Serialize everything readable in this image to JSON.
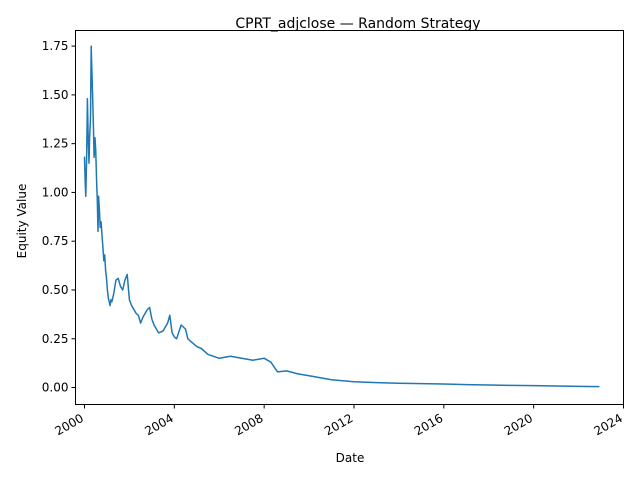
{
  "chart_data": {
    "type": "line",
    "title": "CPRT_adjclose — Random Strategy",
    "xlabel": "Date",
    "ylabel": "Equity Value",
    "xlim": [
      1999.6,
      2024.0
    ],
    "ylim": [
      -0.087,
      1.83
    ],
    "grid": false,
    "legend": "none",
    "x_ticks": [
      2000,
      2004,
      2008,
      2012,
      2016,
      2020,
      2024
    ],
    "x_tick_labels": [
      "2000",
      "2004",
      "2008",
      "2012",
      "2016",
      "2020",
      "2024"
    ],
    "y_ticks": [
      0.0,
      0.25,
      0.5,
      0.75,
      1.0,
      1.25,
      1.5,
      1.75
    ],
    "y_tick_labels": [
      "0.00",
      "0.25",
      "0.50",
      "0.75",
      "1.00",
      "1.25",
      "1.50",
      "1.75"
    ],
    "series": [
      {
        "name": "Equity Value",
        "color": "#1f77b4",
        "x": [
          2000.0,
          2000.03,
          2000.06,
          2000.1,
          2000.13,
          2000.16,
          2000.2,
          2000.23,
          2000.27,
          2000.3,
          2000.33,
          2000.36,
          2000.4,
          2000.43,
          2000.47,
          2000.5,
          2000.54,
          2000.57,
          2000.6,
          2000.63,
          2000.67,
          2000.7,
          2000.74,
          2000.78,
          2000.82,
          2000.86,
          2000.9,
          2000.94,
          2000.98,
          2001.02,
          2001.06,
          2001.1,
          2001.14,
          2001.18,
          2001.22,
          2001.3,
          2001.4,
          2001.5,
          2001.6,
          2001.7,
          2001.8,
          2001.9,
          2002.0,
          2002.1,
          2002.2,
          2002.3,
          2002.4,
          2002.5,
          2002.6,
          2002.7,
          2002.8,
          2002.9,
          2003.0,
          2003.1,
          2003.2,
          2003.3,
          2003.5,
          2003.7,
          2003.8,
          2003.9,
          2004.0,
          2004.1,
          2004.3,
          2004.5,
          2004.6,
          2004.8,
          2005.0,
          2005.2,
          2005.5,
          2006.0,
          2006.5,
          2007.0,
          2007.5,
          2008.0,
          2008.3,
          2008.6,
          2009.0,
          2009.5,
          2010.0,
          2010.5,
          2011.0,
          2011.5,
          2012.0,
          2013.0,
          2014.0,
          2015.0,
          2016.0,
          2017.0,
          2018.0,
          2019.0,
          2020.0,
          2021.0,
          2022.0,
          2022.9
        ],
        "values": [
          1.18,
          1.05,
          0.98,
          1.2,
          1.48,
          1.3,
          1.15,
          1.28,
          1.38,
          1.75,
          1.62,
          1.5,
          1.32,
          1.18,
          1.28,
          1.22,
          1.06,
          0.96,
          0.8,
          0.98,
          0.9,
          0.82,
          0.85,
          0.78,
          0.72,
          0.65,
          0.68,
          0.6,
          0.56,
          0.5,
          0.46,
          0.44,
          0.42,
          0.45,
          0.44,
          0.48,
          0.55,
          0.56,
          0.52,
          0.5,
          0.55,
          0.58,
          0.45,
          0.42,
          0.4,
          0.38,
          0.37,
          0.33,
          0.36,
          0.38,
          0.4,
          0.41,
          0.35,
          0.32,
          0.3,
          0.28,
          0.29,
          0.33,
          0.37,
          0.28,
          0.26,
          0.25,
          0.32,
          0.3,
          0.25,
          0.23,
          0.21,
          0.2,
          0.17,
          0.15,
          0.16,
          0.15,
          0.14,
          0.15,
          0.13,
          0.08,
          0.085,
          0.07,
          0.06,
          0.05,
          0.04,
          0.035,
          0.03,
          0.025,
          0.022,
          0.02,
          0.018,
          0.015,
          0.013,
          0.011,
          0.01,
          0.008,
          0.006,
          0.005
        ]
      }
    ]
  }
}
